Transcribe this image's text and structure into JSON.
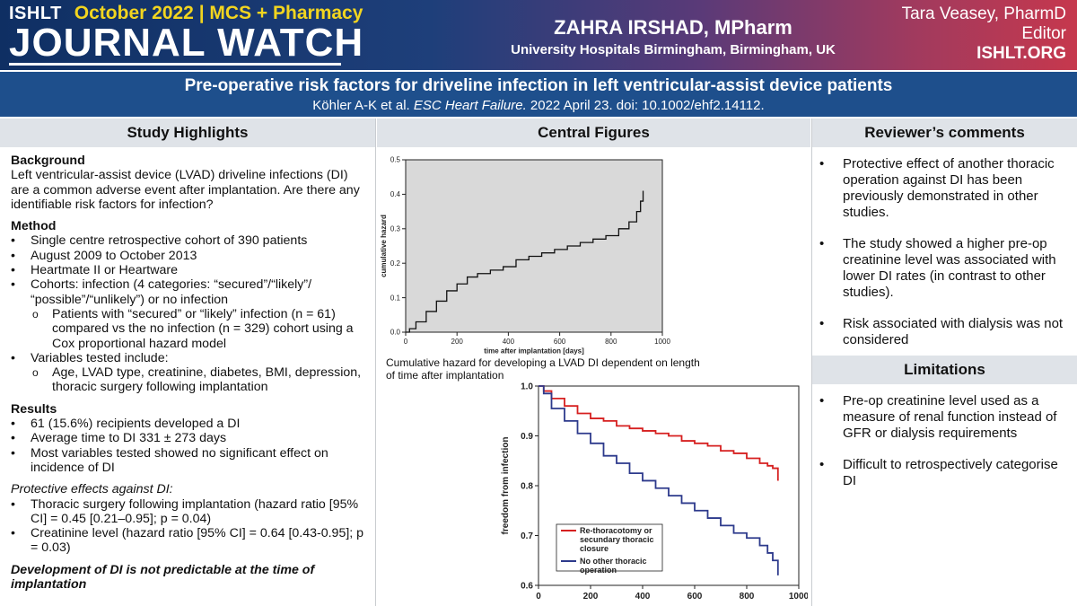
{
  "header": {
    "brand": "ISHLT",
    "edition": "October 2022 | MCS + Pharmacy",
    "title": "JOURNAL WATCH",
    "reviewer_name": "ZAHRA IRSHAD, MPharm",
    "reviewer_affiliation": "University Hospitals Birmingham, Birmingham, UK",
    "editor_name": "Tara Veasey, PharmD",
    "editor_role": "Editor",
    "site": "ISHLT.ORG"
  },
  "article": {
    "title": "Pre-operative risk factors for driveline infection in left ventricular-assist device patients",
    "citation_authors": "Köhler A-K et al. ",
    "citation_journal": "ESC Heart Failure.",
    "citation_rest": " 2022 April 23. doi: 10.1002/ehf2.14112."
  },
  "highlights": {
    "heading": "Study Highlights",
    "background_title": "Background",
    "background_text": "Left ventricular-assist device (LVAD) driveline infections (DI) are a common adverse event after implantation. Are there any identifiable risk factors for infection?",
    "method_title": "Method",
    "method_items": [
      "Single centre retrospective cohort of 390 patients",
      "August 2009 to October 2013",
      "Heartmate II or Heartware",
      "Cohorts: infection (4 categories: “secured”/“likely”/ “possible”/“unlikely”) or no infection"
    ],
    "method_sub": "Patients with “secured” or “likely” infection (n = 61) compared vs the no infection (n = 329) cohort using a Cox proportional hazard model",
    "variables_item": "Variables tested include:",
    "variables_sub": "Age, LVAD type, creatinine, diabetes, BMI, depression, thoracic surgery following implantation",
    "results_title": "Results",
    "results_items": [
      "61 (15.6%) recipients developed a DI",
      "Average time to DI 331 ± 273 days",
      "Most variables tested showed no significant effect on incidence of DI"
    ],
    "protective_title": "Protective effects against DI:",
    "protective_items": [
      "Thoracic surgery following implantation (hazard ratio [95% CI] = 0.45 [0.21–0.95]; p = 0.04)",
      "Creatinine level (hazard ratio [95% CI] = 0.64 [0.43-0.95]; p = 0.03)"
    ],
    "conclusion": "Development of  DI is not predictable at the time of implantation"
  },
  "figures": {
    "heading": "Central Figures",
    "fig1_caption": "Cumulative hazard for developing a LVAD DI dependent on length of time after implantation"
  },
  "chart_data": [
    {
      "type": "line",
      "title": "",
      "xlabel": "time after implantation [days]",
      "ylabel": "cumulative hazard",
      "xlim": [
        0,
        1000
      ],
      "ylim": [
        0,
        0.5
      ],
      "xticks": [
        0,
        200,
        400,
        600,
        800,
        1000
      ],
      "yticks": [
        0.0,
        0.1,
        0.2,
        0.3,
        0.4,
        0.5
      ],
      "grid": false,
      "series": [
        {
          "color": "#111111",
          "x": [
            0,
            15,
            40,
            80,
            120,
            160,
            200,
            240,
            280,
            330,
            380,
            430,
            480,
            530,
            580,
            630,
            680,
            730,
            780,
            830,
            870,
            900,
            915,
            925
          ],
          "y": [
            0,
            0.01,
            0.03,
            0.06,
            0.09,
            0.12,
            0.14,
            0.16,
            0.17,
            0.18,
            0.19,
            0.21,
            0.22,
            0.23,
            0.24,
            0.25,
            0.26,
            0.27,
            0.28,
            0.3,
            0.32,
            0.35,
            0.38,
            0.41
          ]
        }
      ]
    },
    {
      "type": "line",
      "title": "",
      "xlabel": "",
      "ylabel": "freedom from infection",
      "xlim": [
        0,
        1000
      ],
      "ylim": [
        0.6,
        1.0
      ],
      "xticks": [
        0,
        200,
        400,
        600,
        800,
        1000
      ],
      "yticks": [
        0.6,
        0.7,
        0.8,
        0.9,
        1.0
      ],
      "grid": false,
      "legend": "bottom-left",
      "series": [
        {
          "name": "Re-thoracotomy or secundary thoracic closure",
          "color": "#d62020",
          "x": [
            0,
            20,
            50,
            100,
            150,
            200,
            250,
            300,
            350,
            400,
            450,
            500,
            550,
            600,
            650,
            700,
            750,
            800,
            850,
            880,
            900,
            920
          ],
          "y": [
            1.0,
            0.99,
            0.975,
            0.96,
            0.945,
            0.935,
            0.93,
            0.92,
            0.915,
            0.91,
            0.905,
            0.9,
            0.89,
            0.885,
            0.88,
            0.87,
            0.865,
            0.855,
            0.845,
            0.84,
            0.835,
            0.81
          ]
        },
        {
          "name": "No other thoracic operation",
          "color": "#2d3a8c",
          "x": [
            0,
            20,
            50,
            100,
            150,
            200,
            250,
            300,
            350,
            400,
            450,
            500,
            550,
            600,
            650,
            700,
            750,
            800,
            850,
            880,
            900,
            920
          ],
          "y": [
            1.0,
            0.985,
            0.955,
            0.93,
            0.905,
            0.885,
            0.86,
            0.845,
            0.825,
            0.81,
            0.795,
            0.78,
            0.765,
            0.75,
            0.735,
            0.72,
            0.705,
            0.695,
            0.68,
            0.665,
            0.65,
            0.62
          ]
        }
      ]
    }
  ],
  "comments": {
    "heading": "Reviewer’s comments",
    "items": [
      "Protective effect of another thoracic operation against DI has been previously demonstrated in other studies.",
      "The study showed a higher pre-op creatinine level was associated with lower DI rates (in contrast to other studies).",
      "Risk associated with dialysis was not considered"
    ]
  },
  "limitations": {
    "heading": "Limitations",
    "items": [
      "Pre-op creatinine level used as a measure of renal function instead of GFR or dialysis requirements",
      "Difficult to retrospectively categorise DI"
    ]
  }
}
